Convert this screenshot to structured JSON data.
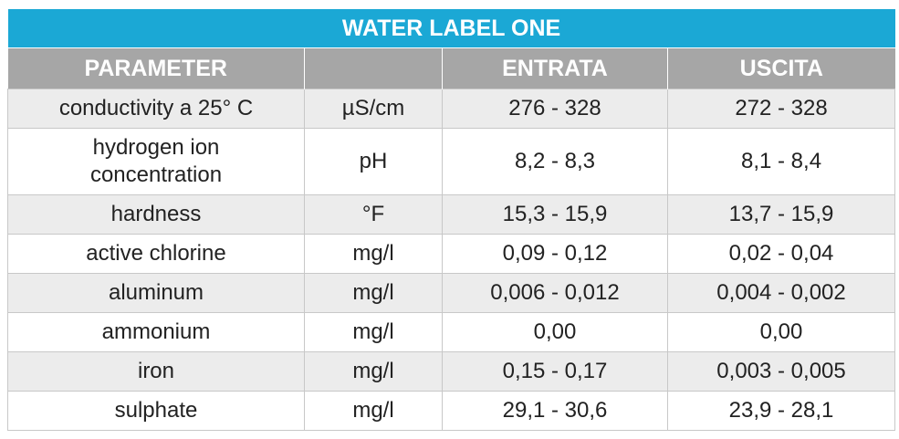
{
  "table": {
    "title": "WATER LABEL ONE",
    "header": {
      "parameter": "PARAMETER",
      "entrata": "ENTRATA",
      "uscita": "USCITA"
    },
    "rows": [
      [
        "conductivity a 25° C",
        "µS/cm",
        "276 - 328",
        "272 - 328"
      ],
      [
        "hydrogen ion concentration",
        "pH",
        "8,2 - 8,3",
        "8,1 - 8,4"
      ],
      [
        "hardness",
        "°F",
        "15,3 - 15,9",
        "13,7 - 15,9"
      ],
      [
        "active chlorine",
        "mg/l",
        "0,09 - 0,12",
        "0,02 - 0,04"
      ],
      [
        "aluminum",
        "mg/l",
        "0,006 - 0,012",
        "0,004 - 0,002"
      ],
      [
        "ammonium",
        "mg/l",
        "0,00",
        "0,00"
      ],
      [
        "iron",
        "mg/l",
        "0,15 - 0,17",
        "0,003 - 0,005"
      ],
      [
        "sulphate",
        "mg/l",
        "29,1 - 30,6",
        "23,9 - 28,1"
      ]
    ]
  }
}
